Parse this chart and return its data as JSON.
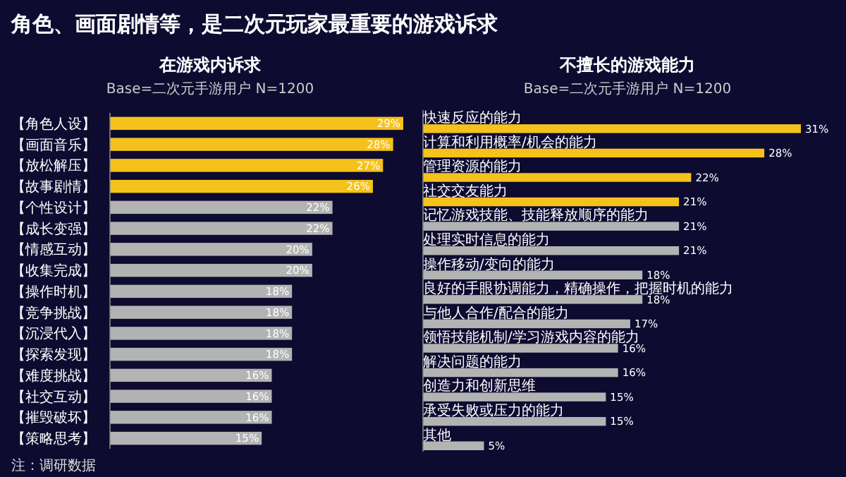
{
  "chart_data": [
    {
      "type": "bar",
      "orientation": "horizontal",
      "title": "在游戏内诉求",
      "subtitle": "Base=二次元手游用户 N=1200",
      "categories": [
        "【角色人设】",
        "【画面音乐】",
        "【放松解压】",
        "【故事剧情】",
        "【个性设计】",
        "【成长变强】",
        "【情感互动】",
        "【收集完成】",
        "【操作时机】",
        "【竞争挑战】",
        "【沉浸代入】",
        "【探索发现】",
        "【难度挑战】",
        "【社交互动】",
        "【摧毁破坏】",
        "【策略思考】"
      ],
      "values": [
        29,
        28,
        27,
        26,
        22,
        22,
        20,
        20,
        18,
        18,
        18,
        18,
        16,
        16,
        16,
        15
      ],
      "value_labels": [
        "29%",
        "28%",
        "27%",
        "26%",
        "22%",
        "22%",
        "20%",
        "20%",
        "18%",
        "18%",
        "18%",
        "18%",
        "16%",
        "16%",
        "16%",
        "15%"
      ],
      "colors": [
        "#f5c21b",
        "#f5c21b",
        "#f5c21b",
        "#f5c21b",
        "#b3b3b3",
        "#b3b3b3",
        "#b3b3b3",
        "#b3b3b3",
        "#b3b3b3",
        "#b3b3b3",
        "#b3b3b3",
        "#b3b3b3",
        "#b3b3b3",
        "#b3b3b3",
        "#b3b3b3",
        "#b3b3b3"
      ],
      "annotations": [
        "角色、画面剧情等，是二次元玩家最重要的游戏诉求",
        "注：调研数据"
      ]
    },
    {
      "type": "bar",
      "orientation": "horizontal",
      "title": "不擅长的游戏能力",
      "subtitle": "Base=二次元手游用户 N=1200",
      "categories": [
        "快速反应的能力",
        "计算和利用概率/机会的能力",
        "管理资源的能力",
        "社交交友能力",
        "记忆游戏技能、技能释放顺序的能力",
        "处理实时信息的能力",
        "操作移动/变向的能力",
        "良好的手眼协调能力，精确操作，把握时机的能力",
        "与他人合作/配合的能力",
        "领悟技能机制/学习游戏内容的能力",
        "解决问题的能力",
        "创造力和创新思维",
        "承受失败或压力的能力",
        "其他"
      ],
      "values": [
        31,
        28,
        22,
        21,
        21,
        21,
        18,
        18,
        17,
        16,
        16,
        15,
        15,
        5
      ],
      "value_labels": [
        "31%",
        "28%",
        "22%",
        "21%",
        "21%",
        "21%",
        "18%",
        "18%",
        "17%",
        "16%",
        "16%",
        "15%",
        "15%",
        "5%"
      ],
      "colors": [
        "#f5c21b",
        "#f5c21b",
        "#f5c21b",
        "#f5c21b",
        "#b3b3b3",
        "#b3b3b3",
        "#b3b3b3",
        "#b3b3b3",
        "#b3b3b3",
        "#b3b3b3",
        "#b3b3b3",
        "#b3b3b3",
        "#b3b3b3",
        "#b3b3b3"
      ]
    }
  ]
}
